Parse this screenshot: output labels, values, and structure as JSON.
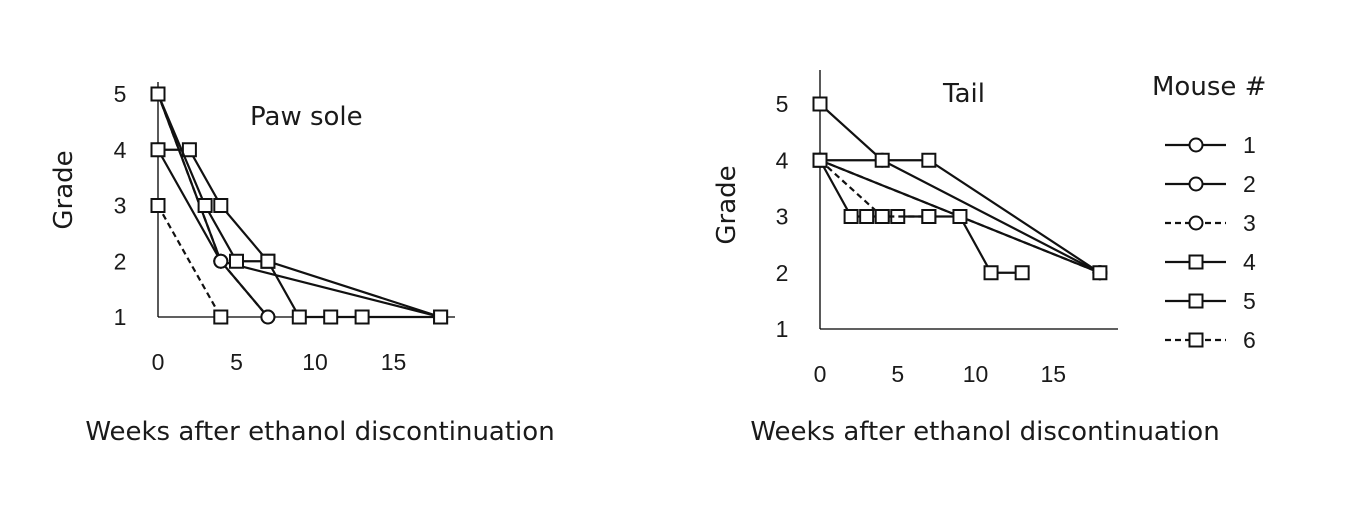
{
  "chart_data": [
    {
      "type": "line",
      "title": "Paw sole",
      "xlabel": "Weeks after ethanol discontinuation",
      "ylabel": "Grade",
      "xlim": [
        0,
        19
      ],
      "ylim": [
        1,
        5
      ],
      "x_ticks": [
        0,
        5,
        10,
        15
      ],
      "y_ticks": [
        1,
        2,
        3,
        4,
        5
      ],
      "series": [
        {
          "name": "1",
          "marker": "circle",
          "dashed": false,
          "points": [
            [
              0,
              5
            ],
            [
              4,
              2
            ],
            [
              18,
              1
            ]
          ]
        },
        {
          "name": "2",
          "marker": "circle",
          "dashed": false,
          "points": [
            [
              0,
              4
            ],
            [
              4,
              2
            ],
            [
              7,
              1
            ]
          ]
        },
        {
          "name": "3",
          "marker": "circle",
          "dashed": true,
          "points": [
            [
              0,
              5
            ],
            [
              4,
              2
            ],
            [
              7,
              1
            ]
          ]
        },
        {
          "name": "4",
          "marker": "square",
          "dashed": false,
          "points": [
            [
              0,
              4
            ],
            [
              2,
              4
            ],
            [
              4,
              3
            ],
            [
              7,
              2
            ],
            [
              18,
              1
            ]
          ]
        },
        {
          "name": "5",
          "marker": "square",
          "dashed": false,
          "points": [
            [
              0,
              5
            ],
            [
              3,
              3
            ],
            [
              5,
              2
            ],
            [
              7,
              2
            ],
            [
              9,
              1
            ],
            [
              11,
              1
            ],
            [
              13,
              1
            ],
            [
              18,
              1
            ]
          ]
        },
        {
          "name": "6",
          "marker": "square",
          "dashed": true,
          "points": [
            [
              0,
              3
            ],
            [
              4,
              1
            ]
          ]
        }
      ]
    },
    {
      "type": "line",
      "title": "Tail",
      "xlabel": "Weeks after ethanol discontinuation",
      "ylabel": "Grade",
      "xlim": [
        0,
        19
      ],
      "ylim": [
        1,
        5
      ],
      "x_ticks": [
        0,
        5,
        10,
        15
      ],
      "y_ticks": [
        1,
        2,
        3,
        4,
        5
      ],
      "series": [
        {
          "name": "1",
          "marker": "circle",
          "dashed": false,
          "points": [
            [
              0,
              4
            ],
            [
              4,
              4
            ],
            [
              18,
              2
            ]
          ]
        },
        {
          "name": "2",
          "marker": "circle",
          "dashed": false,
          "points": [
            [
              0,
              4
            ],
            [
              18,
              2
            ]
          ]
        },
        {
          "name": "3",
          "marker": "circle",
          "dashed": true,
          "points": [
            [
              0,
              4
            ],
            [
              18,
              2
            ]
          ]
        },
        {
          "name": "4",
          "marker": "square",
          "dashed": false,
          "points": [
            [
              0,
              5
            ],
            [
              4,
              4
            ],
            [
              7,
              4
            ],
            [
              18,
              2
            ]
          ]
        },
        {
          "name": "5",
          "marker": "square",
          "dashed": false,
          "points": [
            [
              0,
              4
            ],
            [
              2,
              3
            ],
            [
              3,
              3
            ],
            [
              4,
              3
            ],
            [
              5,
              3
            ],
            [
              7,
              3
            ],
            [
              9,
              3
            ],
            [
              11,
              2
            ],
            [
              13,
              2
            ]
          ]
        },
        {
          "name": "6",
          "marker": "square",
          "dashed": true,
          "points": [
            [
              0,
              4
            ],
            [
              4,
              3
            ],
            [
              7,
              3
            ]
          ]
        }
      ]
    }
  ],
  "legend": {
    "title": "Mouse #",
    "entries": [
      {
        "label": "1",
        "marker": "circle",
        "dashed": false
      },
      {
        "label": "2",
        "marker": "circle",
        "dashed": false
      },
      {
        "label": "3",
        "marker": "circle",
        "dashed": true
      },
      {
        "label": "4",
        "marker": "square",
        "dashed": false
      },
      {
        "label": "5",
        "marker": "square",
        "dashed": false
      },
      {
        "label": "6",
        "marker": "square",
        "dashed": true
      }
    ]
  }
}
